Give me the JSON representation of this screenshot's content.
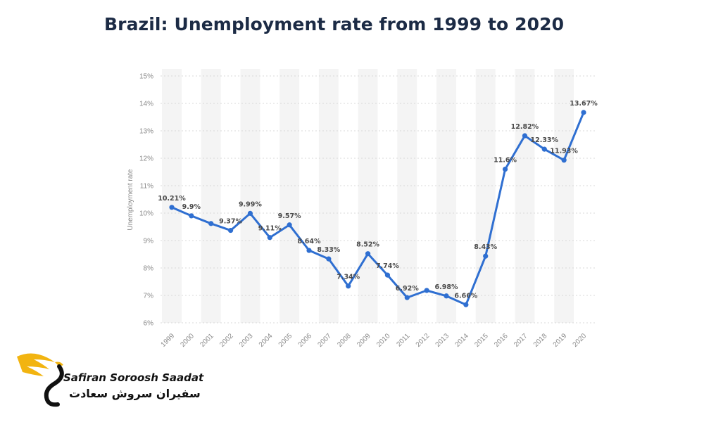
{
  "title": "Brazil: Unemployment rate from 1999 to 2020",
  "brand": {
    "name_en": "Safiran Soroosh Saadat",
    "name_fa": "سفیران سروش سعادت",
    "icon": "wing-s-logo-icon",
    "colors": {
      "gold": "#f2b410",
      "dark": "#111111"
    }
  },
  "colors": {
    "line": "#2f6fd1",
    "title": "#1c2b45",
    "band": "#f4f4f4",
    "grid": "#d9d9d9"
  },
  "chart_data": {
    "type": "line",
    "title": "Brazil: Unemployment rate from 1999 to 2020",
    "xlabel": "",
    "ylabel": "Unemployment rate",
    "ylim": [
      6,
      15
    ],
    "y_ticks": [
      6,
      7,
      8,
      9,
      10,
      11,
      12,
      13,
      14,
      15
    ],
    "y_tick_suffix": "%",
    "grid": "horizontal dotted lines with alternating vertical bands",
    "categories": [
      "1999",
      "2000",
      "2001",
      "2002",
      "2003",
      "2004",
      "2005",
      "2006",
      "2007",
      "2008",
      "2009",
      "2010",
      "2011",
      "2012",
      "2013",
      "2014",
      "2015",
      "2016",
      "2017",
      "2018",
      "2019",
      "2020"
    ],
    "series": [
      {
        "values": [
          10.21,
          9.9,
          9.62,
          9.37,
          9.99,
          9.11,
          9.57,
          8.64,
          8.33,
          7.34,
          8.52,
          7.74,
          6.92,
          7.18,
          6.98,
          6.66,
          8.43,
          11.6,
          12.82,
          12.33,
          11.93,
          13.67
        ],
        "data_labels": [
          "10.21%",
          "9.9%",
          "",
          "9.37%",
          "9.99%",
          "9.11%",
          "9.57%",
          "8.64%",
          "8.33%",
          "7.34%",
          "8.52%",
          "7.74%",
          "6.92%",
          "",
          "6.98%",
          "6.66%",
          "8.43%",
          "11.6%",
          "12.82%",
          "12.33%",
          "11.93%",
          "13.67%"
        ]
      }
    ]
  }
}
